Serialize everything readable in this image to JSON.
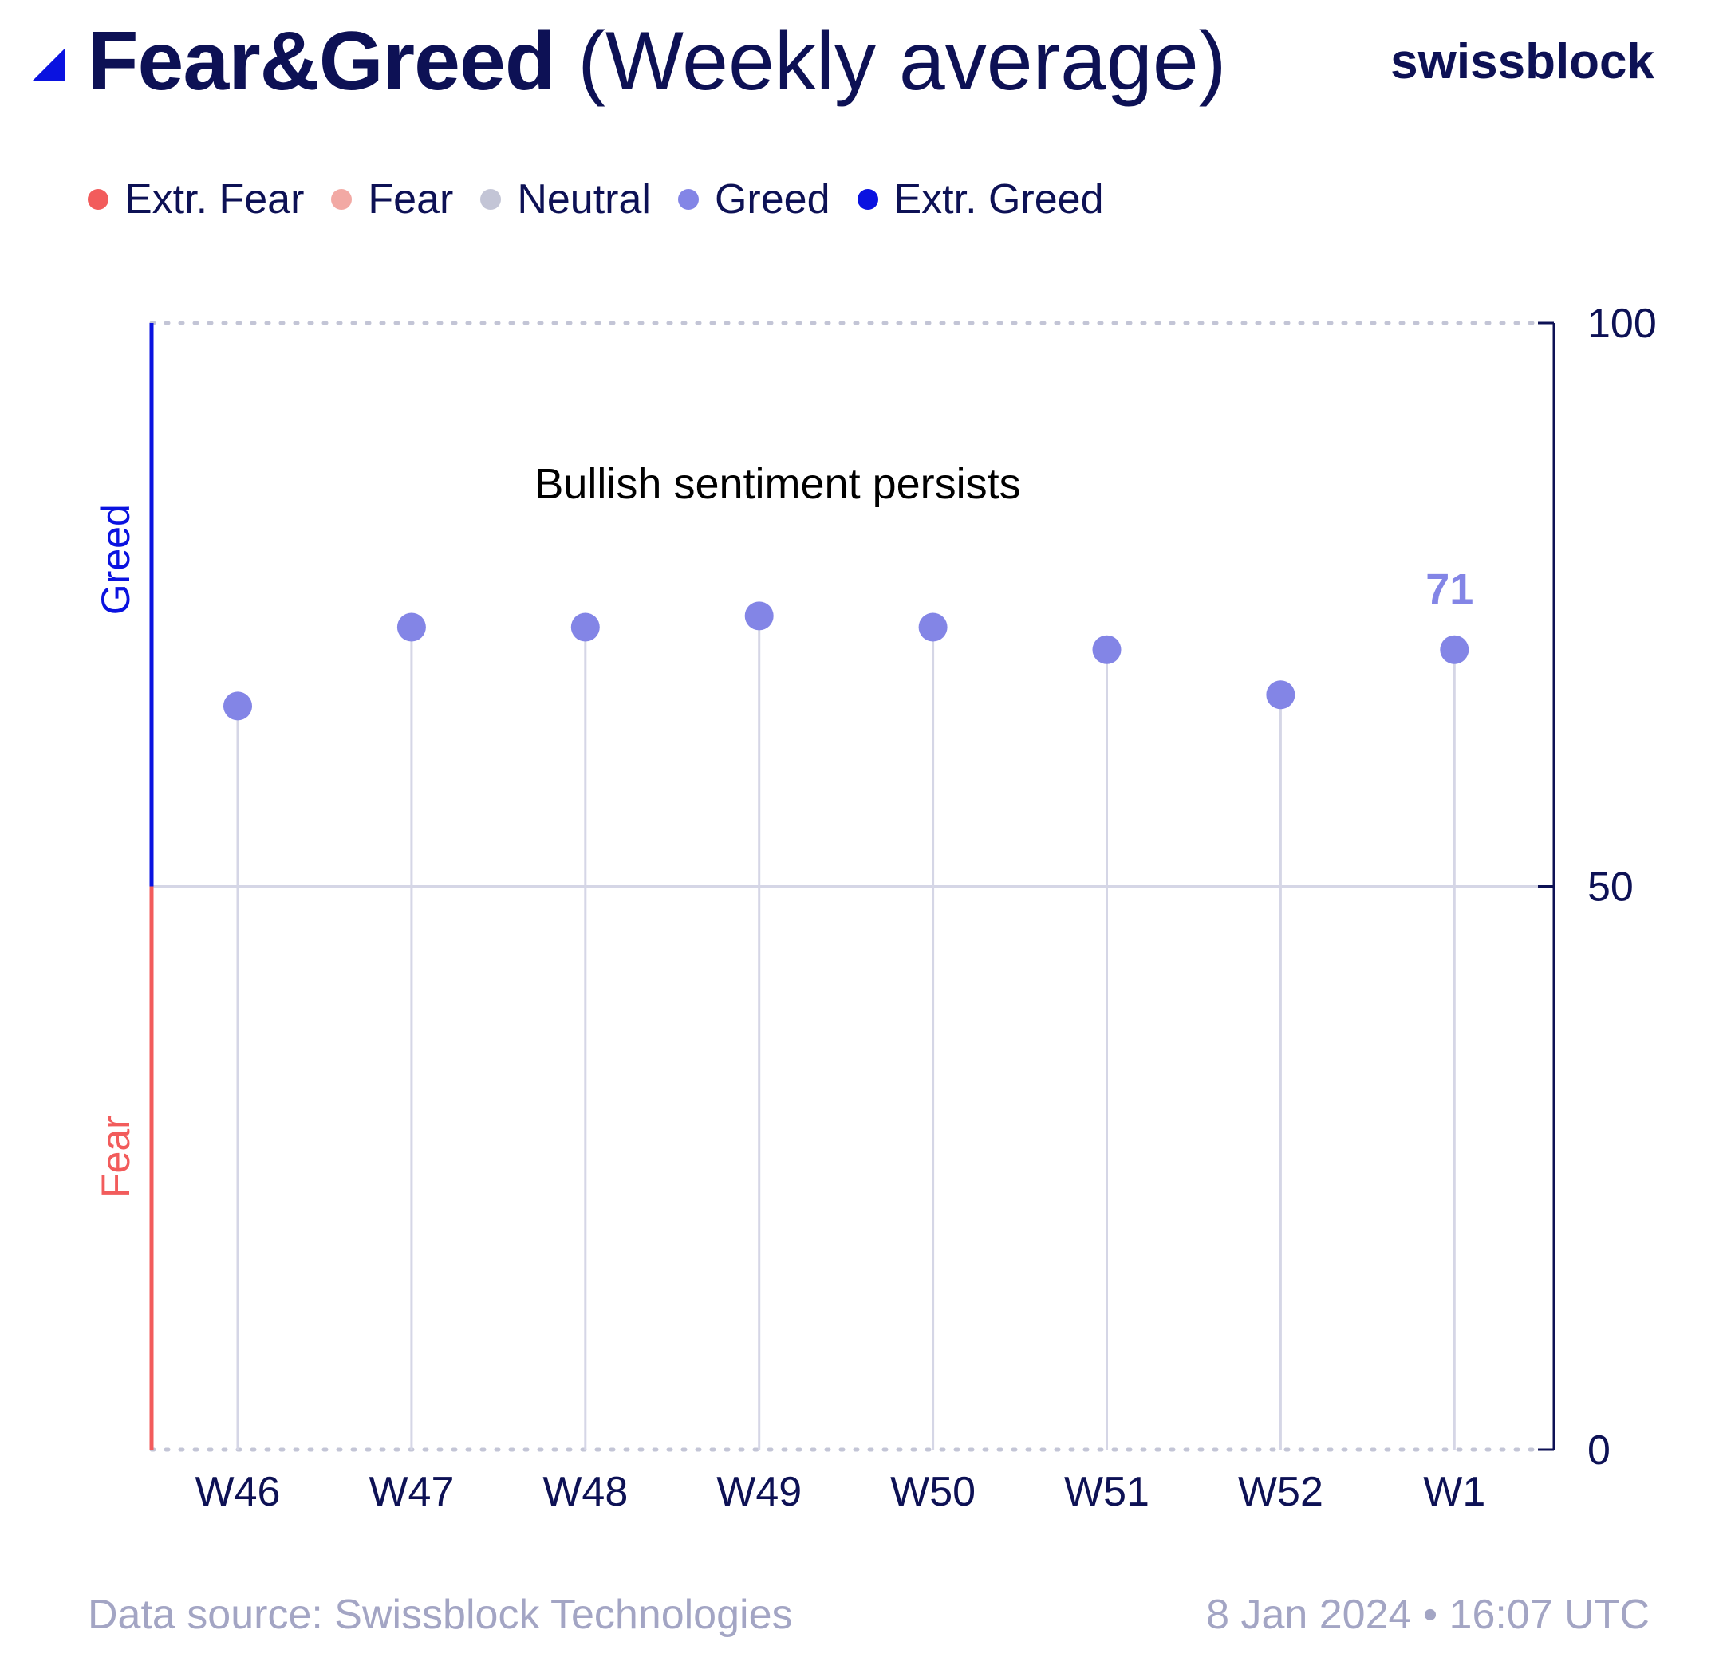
{
  "header": {
    "title_bold": "Fear&Greed",
    "title_light": "(Weekly average)",
    "brand": "swissblock"
  },
  "colors": {
    "ink": "#0d1155",
    "extr_fear": "#f25c5c",
    "fear": "#f2a9a4",
    "neutral": "#c3c5d6",
    "greed": "#8385e6",
    "extr_greed": "#0a12e0",
    "stem": "#d5d6e6"
  },
  "legend": [
    {
      "label": "Extr. Fear",
      "color": "#f25c5c"
    },
    {
      "label": "Fear",
      "color": "#f2a9a4"
    },
    {
      "label": "Neutral",
      "color": "#c3c5d6"
    },
    {
      "label": "Greed",
      "color": "#8385e6"
    },
    {
      "label": "Extr. Greed",
      "color": "#0a12e0"
    }
  ],
  "chart_data": {
    "type": "scatter",
    "style": "lollipop",
    "annotation": "Bullish sentiment persists",
    "last_value_label": "71",
    "categories": [
      "W46",
      "W47",
      "W48",
      "W49",
      "W50",
      "W51",
      "W52",
      "W1"
    ],
    "values": [
      66,
      73,
      73,
      74,
      73,
      71,
      67,
      71
    ],
    "ylim": [
      0,
      100
    ],
    "yticks": [
      "0",
      "50",
      "100"
    ],
    "side_labels": {
      "top": "Greed",
      "bottom": "Fear"
    },
    "y_axis_position": "right",
    "grid": "dotted top and bottom lines, solid midline at 50"
  },
  "footer": {
    "source": "Data source: Swissblock Technologies",
    "timestamp": "8 Jan 2024 • 16:07 UTC"
  }
}
